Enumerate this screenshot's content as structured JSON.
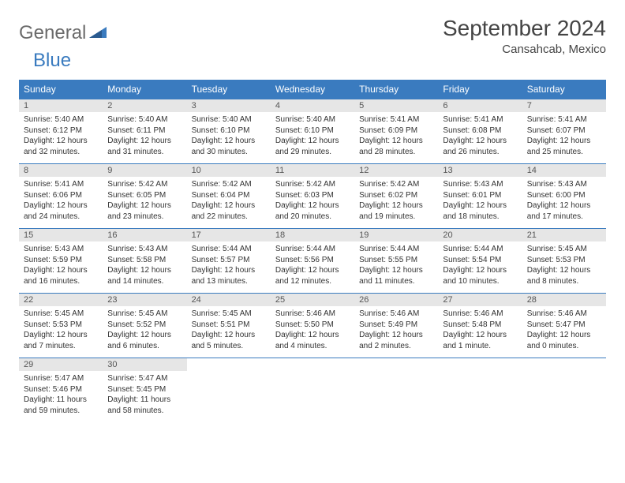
{
  "brand": {
    "part1": "General",
    "part2": "Blue"
  },
  "title": "September 2024",
  "location": "Cansahcab, Mexico",
  "colors": {
    "header_bg": "#3a7bbf",
    "header_text": "#ffffff",
    "daynum_bg": "#e6e6e6",
    "border": "#3a7bbf",
    "text": "#333333",
    "logo_gray": "#6b6b6b",
    "logo_blue": "#3a7bbf",
    "background": "#ffffff"
  },
  "typography": {
    "title_size_pt": 21,
    "subtitle_size_pt": 11,
    "header_size_pt": 9,
    "body_size_pt": 7.5
  },
  "weekdays": [
    "Sunday",
    "Monday",
    "Tuesday",
    "Wednesday",
    "Thursday",
    "Friday",
    "Saturday"
  ],
  "days": [
    {
      "n": 1,
      "sunrise": "5:40 AM",
      "sunset": "6:12 PM",
      "daylight": "12 hours and 32 minutes."
    },
    {
      "n": 2,
      "sunrise": "5:40 AM",
      "sunset": "6:11 PM",
      "daylight": "12 hours and 31 minutes."
    },
    {
      "n": 3,
      "sunrise": "5:40 AM",
      "sunset": "6:10 PM",
      "daylight": "12 hours and 30 minutes."
    },
    {
      "n": 4,
      "sunrise": "5:40 AM",
      "sunset": "6:10 PM",
      "daylight": "12 hours and 29 minutes."
    },
    {
      "n": 5,
      "sunrise": "5:41 AM",
      "sunset": "6:09 PM",
      "daylight": "12 hours and 28 minutes."
    },
    {
      "n": 6,
      "sunrise": "5:41 AM",
      "sunset": "6:08 PM",
      "daylight": "12 hours and 26 minutes."
    },
    {
      "n": 7,
      "sunrise": "5:41 AM",
      "sunset": "6:07 PM",
      "daylight": "12 hours and 25 minutes."
    },
    {
      "n": 8,
      "sunrise": "5:41 AM",
      "sunset": "6:06 PM",
      "daylight": "12 hours and 24 minutes."
    },
    {
      "n": 9,
      "sunrise": "5:42 AM",
      "sunset": "6:05 PM",
      "daylight": "12 hours and 23 minutes."
    },
    {
      "n": 10,
      "sunrise": "5:42 AM",
      "sunset": "6:04 PM",
      "daylight": "12 hours and 22 minutes."
    },
    {
      "n": 11,
      "sunrise": "5:42 AM",
      "sunset": "6:03 PM",
      "daylight": "12 hours and 20 minutes."
    },
    {
      "n": 12,
      "sunrise": "5:42 AM",
      "sunset": "6:02 PM",
      "daylight": "12 hours and 19 minutes."
    },
    {
      "n": 13,
      "sunrise": "5:43 AM",
      "sunset": "6:01 PM",
      "daylight": "12 hours and 18 minutes."
    },
    {
      "n": 14,
      "sunrise": "5:43 AM",
      "sunset": "6:00 PM",
      "daylight": "12 hours and 17 minutes."
    },
    {
      "n": 15,
      "sunrise": "5:43 AM",
      "sunset": "5:59 PM",
      "daylight": "12 hours and 16 minutes."
    },
    {
      "n": 16,
      "sunrise": "5:43 AM",
      "sunset": "5:58 PM",
      "daylight": "12 hours and 14 minutes."
    },
    {
      "n": 17,
      "sunrise": "5:44 AM",
      "sunset": "5:57 PM",
      "daylight": "12 hours and 13 minutes."
    },
    {
      "n": 18,
      "sunrise": "5:44 AM",
      "sunset": "5:56 PM",
      "daylight": "12 hours and 12 minutes."
    },
    {
      "n": 19,
      "sunrise": "5:44 AM",
      "sunset": "5:55 PM",
      "daylight": "12 hours and 11 minutes."
    },
    {
      "n": 20,
      "sunrise": "5:44 AM",
      "sunset": "5:54 PM",
      "daylight": "12 hours and 10 minutes."
    },
    {
      "n": 21,
      "sunrise": "5:45 AM",
      "sunset": "5:53 PM",
      "daylight": "12 hours and 8 minutes."
    },
    {
      "n": 22,
      "sunrise": "5:45 AM",
      "sunset": "5:53 PM",
      "daylight": "12 hours and 7 minutes."
    },
    {
      "n": 23,
      "sunrise": "5:45 AM",
      "sunset": "5:52 PM",
      "daylight": "12 hours and 6 minutes."
    },
    {
      "n": 24,
      "sunrise": "5:45 AM",
      "sunset": "5:51 PM",
      "daylight": "12 hours and 5 minutes."
    },
    {
      "n": 25,
      "sunrise": "5:46 AM",
      "sunset": "5:50 PM",
      "daylight": "12 hours and 4 minutes."
    },
    {
      "n": 26,
      "sunrise": "5:46 AM",
      "sunset": "5:49 PM",
      "daylight": "12 hours and 2 minutes."
    },
    {
      "n": 27,
      "sunrise": "5:46 AM",
      "sunset": "5:48 PM",
      "daylight": "12 hours and 1 minute."
    },
    {
      "n": 28,
      "sunrise": "5:46 AM",
      "sunset": "5:47 PM",
      "daylight": "12 hours and 0 minutes."
    },
    {
      "n": 29,
      "sunrise": "5:47 AM",
      "sunset": "5:46 PM",
      "daylight": "11 hours and 59 minutes."
    },
    {
      "n": 30,
      "sunrise": "5:47 AM",
      "sunset": "5:45 PM",
      "daylight": "11 hours and 58 minutes."
    }
  ],
  "labels": {
    "sunrise": "Sunrise:",
    "sunset": "Sunset:",
    "daylight": "Daylight:"
  },
  "layout": {
    "start_weekday": 0,
    "columns": 7
  }
}
